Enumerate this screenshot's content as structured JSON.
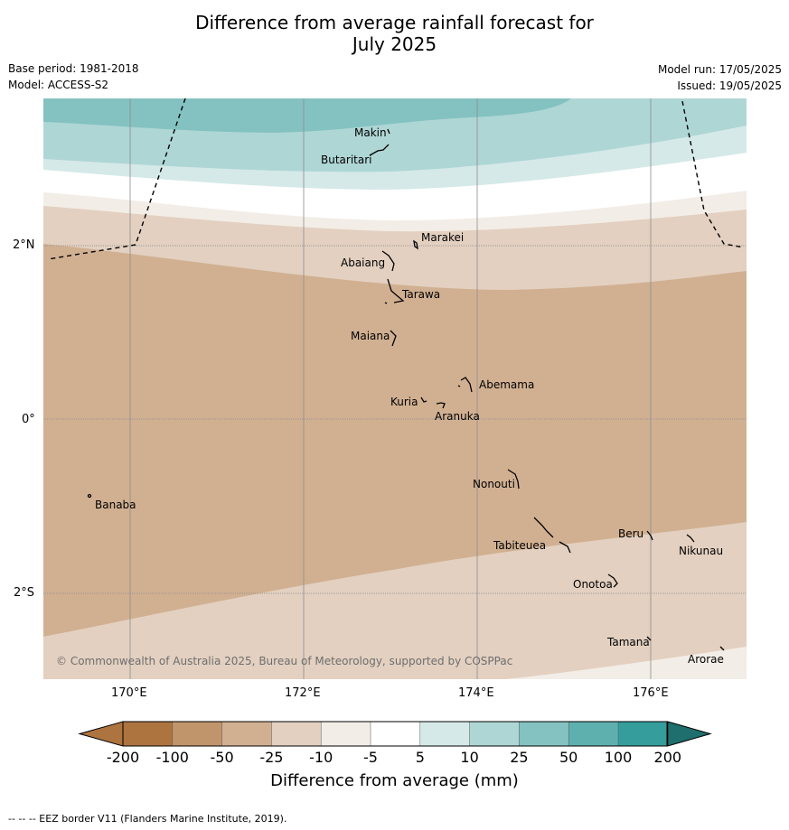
{
  "title_line1": "Difference from average rainfall forecast for",
  "title_line2": "July 2025",
  "base_period": "Base period: 1981-2018",
  "model": "Model: ACCESS-S2",
  "model_run": "Model run: 17/05/2025",
  "issued": "Issued: 19/05/2025",
  "lon_labels": [
    "170°E",
    "172°E",
    "174°E",
    "176°E"
  ],
  "lat_labels": [
    "2°N",
    "0°",
    "2°S"
  ],
  "copyright": "© Commonwealth of Australia 2025, Bureau of Meteorology, supported by COSPPac",
  "islands": [
    "Makin",
    "Butaritari",
    "Marakei",
    "Abaiang",
    "Tarawa",
    "Maiana",
    "Abemama",
    "Kuria",
    "Aranuka",
    "Nonouti",
    "Banaba",
    "Beru",
    "Nikunau",
    "Tabiteuea",
    "Onotoa",
    "Tamana",
    "Arorae"
  ],
  "colorbar": {
    "title": "Difference from average (mm)",
    "ticks": [
      "-200",
      "-100",
      "-50",
      "-25",
      "-10",
      "-5",
      "5",
      "10",
      "25",
      "50",
      "100",
      "200"
    ],
    "colors": [
      "#ad7440",
      "#c1956b",
      "#d1b092",
      "#e3d0c0",
      "#f3ede7",
      "#ffffff",
      "#d5e9e8",
      "#aed6d5",
      "#84c2c1",
      "#5eb0ae",
      "#359e9c",
      "#1e6f6d"
    ]
  },
  "footer": "--  --  -- EEZ border V11 (Flanders Marine Institute, 2019)."
}
